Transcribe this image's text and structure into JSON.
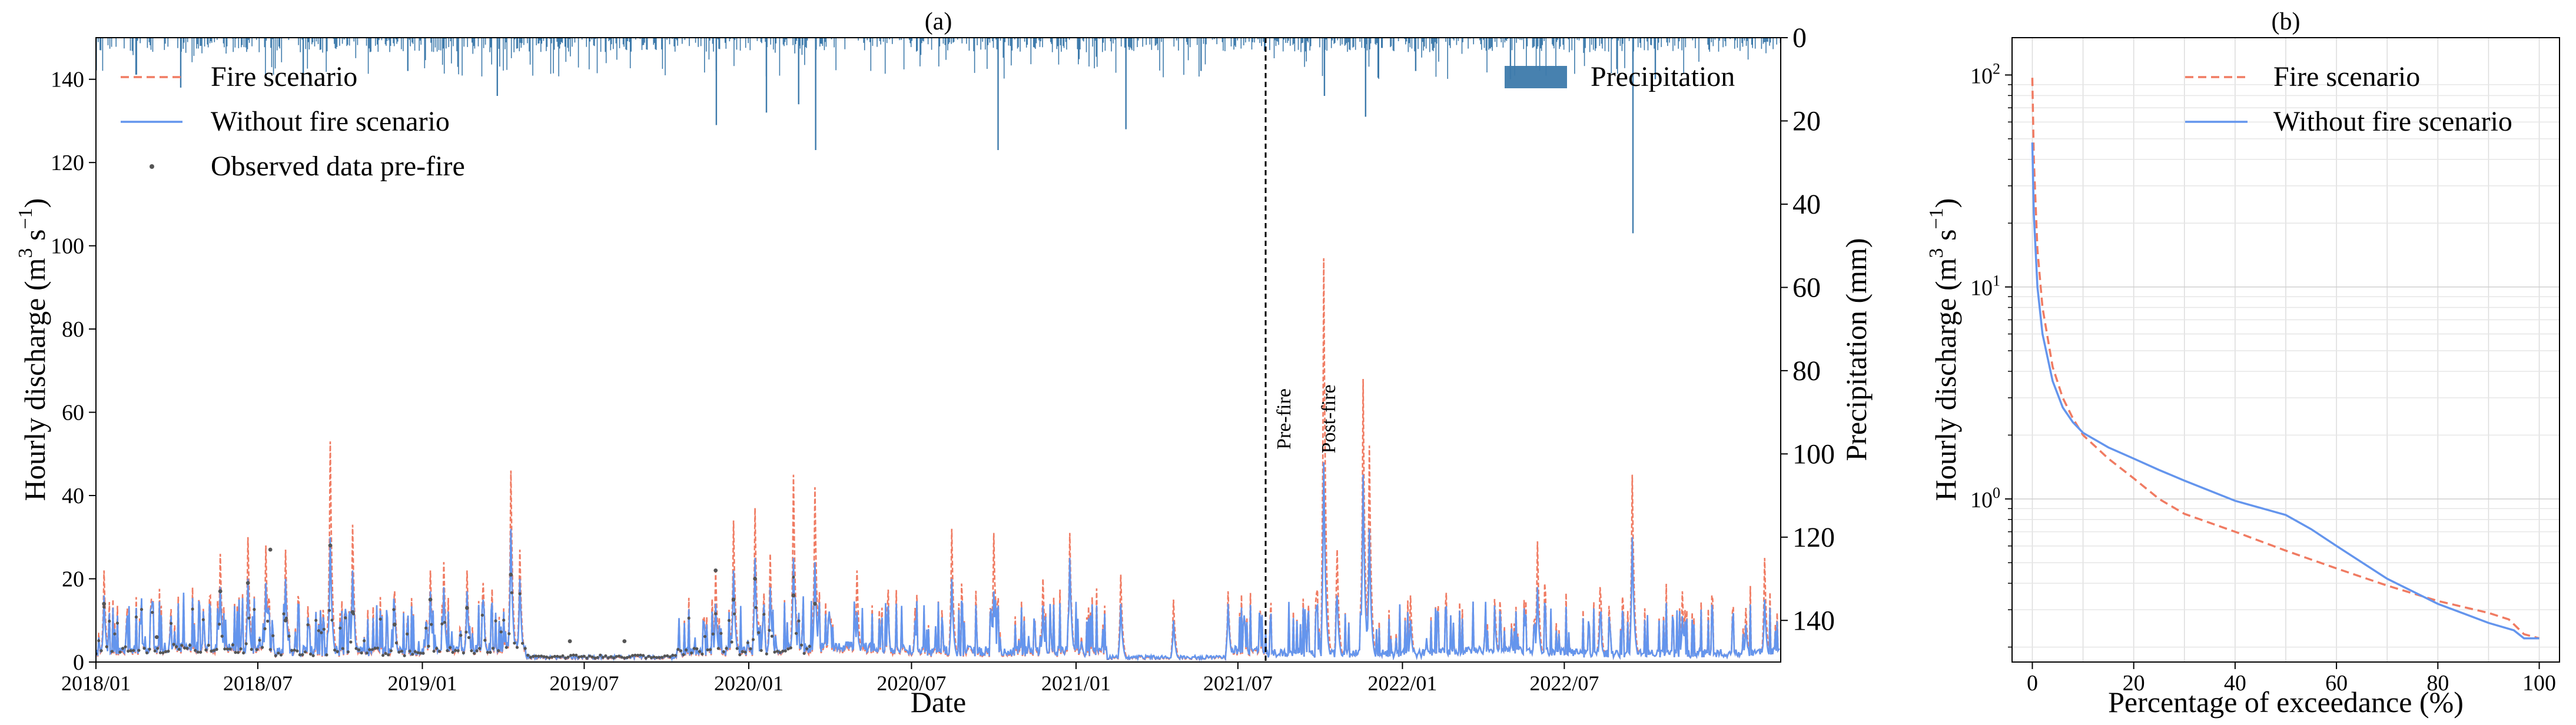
{
  "chart_data": [
    {
      "panel_label": "(a)",
      "type": "line",
      "xlabel": "Date",
      "ylabel": "Hourly discharge (m³ s⁻¹)",
      "ylabel_parts": {
        "main": "Hourly discharge (m",
        "sup1": "3",
        "mid": " s",
        "sup2": "−1",
        "end": ")"
      },
      "ylim": [
        0,
        150
      ],
      "yticks": [
        0,
        20,
        40,
        60,
        80,
        100,
        120,
        140
      ],
      "xlim": [
        "2018-01-01",
        "2023-02-28"
      ],
      "xticks": [
        "2018/01",
        "2018/07",
        "2019/01",
        "2019/07",
        "2020/01",
        "2020/07",
        "2021/01",
        "2021/07",
        "2022/01",
        "2022/07"
      ],
      "y2label": "Precipitation (mm)",
      "y2lim": [
        150,
        0
      ],
      "y2ticks": [
        0,
        20,
        40,
        60,
        80,
        100,
        120,
        140
      ],
      "grid": false,
      "legend_left": {
        "placement": "top-left",
        "entries": [
          "Fire scenario",
          "Without fire scenario",
          "Observed data pre-fire"
        ]
      },
      "legend_right": {
        "placement": "top-right",
        "entries": [
          "Precipitation"
        ]
      },
      "fire_date": "2021-08-01",
      "annotations": [
        "Pre-fire",
        "Post-fire"
      ],
      "colors": {
        "fire": "#f07b62",
        "without_fire": "#6495ed",
        "observed": "#555555",
        "precip": "#3d7aab"
      },
      "series": [
        {
          "name": "Fire scenario",
          "style": "dashed",
          "peaks": [
            [
              "2018-01-10",
              22
            ],
            [
              "2018-02-20",
              11
            ],
            [
              "2018-03-25",
              9
            ],
            [
              "2018-05-20",
              26
            ],
            [
              "2018-06-20",
              30
            ],
            [
              "2018-07-10",
              28
            ],
            [
              "2018-08-01",
              27
            ],
            [
              "2018-09-20",
              53
            ],
            [
              "2018-10-15",
              33
            ],
            [
              "2018-12-01",
              17
            ],
            [
              "2019-01-10",
              22
            ],
            [
              "2019-01-25",
              24
            ],
            [
              "2019-02-20",
              22
            ],
            [
              "2019-03-10",
              19
            ],
            [
              "2019-04-10",
              46
            ],
            [
              "2019-04-20",
              27
            ],
            [
              "2019-11-25",
              22
            ],
            [
              "2019-12-15",
              34
            ],
            [
              "2020-01-08",
              37
            ],
            [
              "2020-01-25",
              26
            ],
            [
              "2020-02-20",
              45
            ],
            [
              "2020-03-15",
              42
            ],
            [
              "2020-05-01",
              22
            ],
            [
              "2020-07-05",
              13
            ],
            [
              "2020-08-15",
              32
            ],
            [
              "2020-10-01",
              31
            ],
            [
              "2020-11-25",
              20
            ],
            [
              "2020-12-25",
              31
            ],
            [
              "2021-02-20",
              21
            ],
            [
              "2021-04-20",
              15
            ],
            [
              "2021-06-20",
              17
            ],
            [
              "2021-10-05",
              97
            ],
            [
              "2021-10-20",
              27
            ],
            [
              "2021-11-18",
              68
            ],
            [
              "2021-11-25",
              52
            ],
            [
              "2022-01-10",
              16
            ],
            [
              "2022-04-15",
              11
            ],
            [
              "2022-06-01",
              29
            ],
            [
              "2022-08-10",
              18
            ],
            [
              "2022-09-15",
              45
            ],
            [
              "2022-11-10",
              17
            ],
            [
              "2023-01-20",
              13
            ],
            [
              "2023-02-10",
              25
            ]
          ]
        },
        {
          "name": "Without fire scenario",
          "style": "solid",
          "peaks": [
            [
              "2018-01-10",
              16
            ],
            [
              "2018-02-20",
              9
            ],
            [
              "2018-03-25",
              7
            ],
            [
              "2018-05-20",
              18
            ],
            [
              "2018-06-20",
              20
            ],
            [
              "2018-07-10",
              19
            ],
            [
              "2018-08-01",
              20
            ],
            [
              "2018-09-20",
              30
            ],
            [
              "2018-10-15",
              22
            ],
            [
              "2018-12-01",
              13
            ],
            [
              "2019-01-10",
              17
            ],
            [
              "2019-01-25",
              18
            ],
            [
              "2019-02-20",
              17
            ],
            [
              "2019-03-10",
              15
            ],
            [
              "2019-04-10",
              32
            ],
            [
              "2019-04-20",
              20
            ],
            [
              "2019-11-25",
              14
            ],
            [
              "2019-12-15",
              22
            ],
            [
              "2020-01-08",
              25
            ],
            [
              "2020-01-25",
              18
            ],
            [
              "2020-02-20",
              25
            ],
            [
              "2020-03-15",
              24
            ],
            [
              "2020-05-01",
              12
            ],
            [
              "2020-07-05",
              10
            ],
            [
              "2020-08-15",
              20
            ],
            [
              "2020-10-01",
              17
            ],
            [
              "2020-11-25",
              12
            ],
            [
              "2020-12-25",
              25
            ],
            [
              "2021-02-20",
              14
            ],
            [
              "2021-04-20",
              10
            ],
            [
              "2021-06-20",
              14
            ],
            [
              "2021-10-05",
              48
            ],
            [
              "2021-10-20",
              16
            ],
            [
              "2021-11-18",
              45
            ],
            [
              "2021-11-25",
              32
            ],
            [
              "2022-01-10",
              10
            ],
            [
              "2022-04-15",
              8
            ],
            [
              "2022-06-01",
              18
            ],
            [
              "2022-08-10",
              11
            ],
            [
              "2022-09-15",
              30
            ],
            [
              "2022-11-10",
              11
            ],
            [
              "2023-01-20",
              9
            ],
            [
              "2023-02-10",
              15
            ]
          ]
        },
        {
          "name": "Observed data pre-fire",
          "style": "points",
          "points": [
            [
              "2018-01-10",
              14
            ],
            [
              "2018-03-10",
              6
            ],
            [
              "2018-05-20",
              17
            ],
            [
              "2018-06-20",
              19
            ],
            [
              "2018-07-15",
              27
            ],
            [
              "2018-08-01",
              10
            ],
            [
              "2018-09-20",
              28
            ],
            [
              "2018-10-15",
              12
            ],
            [
              "2018-12-01",
              9
            ],
            [
              "2019-01-10",
              15
            ],
            [
              "2019-02-20",
              13
            ],
            [
              "2019-04-10",
              21
            ],
            [
              "2019-06-15",
              5
            ],
            [
              "2019-08-15",
              5
            ],
            [
              "2019-11-25",
              22
            ],
            [
              "2019-12-15",
              15
            ],
            [
              "2020-01-08",
              20
            ],
            [
              "2020-02-20",
              16
            ],
            [
              "2020-03-15",
              14
            ]
          ]
        }
      ],
      "precipitation_peaks": [
        [
          "2018-04-05",
          12
        ],
        [
          "2018-08-20",
          10
        ],
        [
          "2018-12-15",
          8
        ],
        [
          "2019-03-25",
          14
        ],
        [
          "2019-11-25",
          21
        ],
        [
          "2020-01-20",
          18
        ],
        [
          "2020-02-25",
          16
        ],
        [
          "2020-03-15",
          27
        ],
        [
          "2020-10-05",
          27
        ],
        [
          "2021-02-25",
          22
        ],
        [
          "2021-05-20",
          8
        ],
        [
          "2021-10-05",
          14
        ],
        [
          "2021-11-20",
          19
        ],
        [
          "2022-01-15",
          8
        ],
        [
          "2022-05-01",
          10
        ],
        [
          "2022-09-15",
          47
        ],
        [
          "2022-10-10",
          10
        ]
      ]
    },
    {
      "panel_label": "(b)",
      "type": "line",
      "xlabel": "Percentage of exceedance (%)",
      "ylabel": "Hourly discharge (m³ s⁻¹)",
      "ylabel_parts": {
        "main": "Hourly discharge (m",
        "sup1": "3",
        "mid": " s",
        "sup2": "−1",
        "end": ")"
      },
      "xlim": [
        -4,
        104
      ],
      "xticks": [
        0,
        20,
        40,
        60,
        80,
        100
      ],
      "ylim": [
        0.17,
        150
      ],
      "yscale": "log",
      "yticks": [
        {
          "value": 1,
          "base": "10",
          "exp": "0"
        },
        {
          "value": 10,
          "base": "10",
          "exp": "1"
        },
        {
          "value": 100,
          "base": "10",
          "exp": "2"
        }
      ],
      "grid": true,
      "legend": {
        "placement": "top-right",
        "entries": [
          "Fire scenario",
          "Without fire scenario"
        ]
      },
      "series": [
        {
          "name": "Fire scenario",
          "style": "dashed",
          "x": [
            0,
            0.3,
            1,
            2,
            4,
            6,
            8,
            10,
            15,
            20,
            25,
            30,
            40,
            50,
            60,
            70,
            80,
            90,
            94,
            97,
            100
          ],
          "y": [
            97,
            40,
            15,
            8,
            4.2,
            3.0,
            2.4,
            2.0,
            1.55,
            1.25,
            1.0,
            0.85,
            0.7,
            0.57,
            0.47,
            0.39,
            0.33,
            0.29,
            0.27,
            0.23,
            0.22
          ]
        },
        {
          "name": "Without fire scenario",
          "style": "solid",
          "x": [
            0,
            0.3,
            1,
            2,
            4,
            6,
            8,
            10,
            15,
            20,
            25,
            30,
            40,
            50,
            55,
            60,
            70,
            80,
            90,
            95,
            97,
            100
          ],
          "y": [
            48,
            22,
            10,
            6,
            3.6,
            2.7,
            2.3,
            2.05,
            1.75,
            1.55,
            1.37,
            1.22,
            0.98,
            0.84,
            0.72,
            0.6,
            0.42,
            0.32,
            0.26,
            0.24,
            0.22,
            0.22
          ]
        }
      ]
    }
  ]
}
